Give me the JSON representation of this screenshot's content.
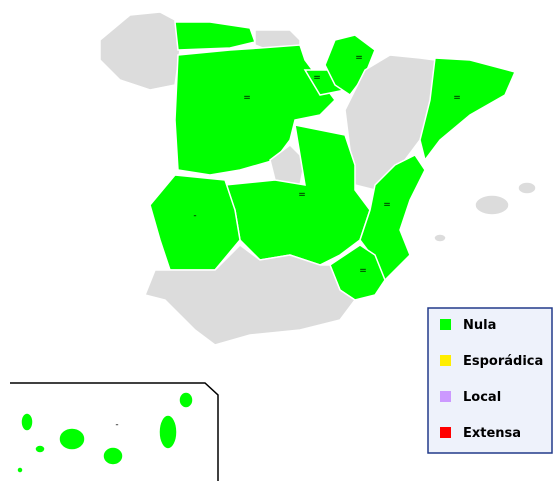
{
  "legend": {
    "items": [
      {
        "label": "Nula",
        "color": "#00ff00"
      },
      {
        "label": "Esporádica",
        "color": "#ffee00"
      },
      {
        "label": "Local",
        "color": "#cc99ff"
      },
      {
        "label": "Extensa",
        "color": "#ff0000"
      }
    ]
  },
  "markers": [
    "=",
    "=",
    "=",
    "=",
    "=",
    "=",
    "=",
    "-",
    "-"
  ]
}
